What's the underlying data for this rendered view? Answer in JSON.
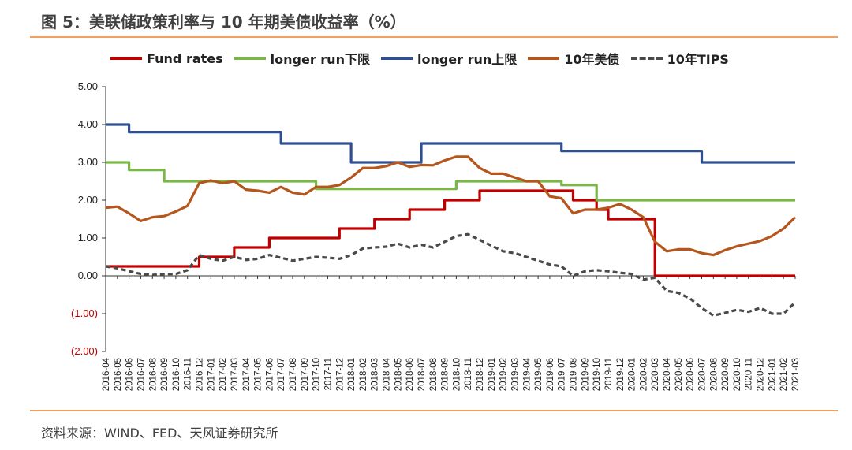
{
  "title": "图 5：美联储政策利率与 10 年期美债收益率（%）",
  "source": "资料来源：WIND、FED、天风证券研究所",
  "chart_data": {
    "type": "line",
    "ylim": [
      -2,
      5
    ],
    "yticks": [
      5,
      4,
      3,
      2,
      1,
      0,
      -1,
      -2
    ],
    "ytick_labels": [
      "5.00",
      "4.00",
      "3.00",
      "2.00",
      "1.00",
      "0.00",
      "(1.00)",
      "(2.00)"
    ],
    "negative_label_color": "#c00000",
    "legend_position": "top",
    "grid": false,
    "x_categories": [
      "2016-04",
      "2016-05",
      "2016-06",
      "2016-07",
      "2016-08",
      "2016-09",
      "2016-10",
      "2016-11",
      "2016-12",
      "2017-01",
      "2017-02",
      "2017-03",
      "2017-04",
      "2017-05",
      "2017-06",
      "2017-07",
      "2017-08",
      "2017-09",
      "2017-10",
      "2017-11",
      "2017-12",
      "2018-01",
      "2018-02",
      "2018-03",
      "2018-04",
      "2018-05",
      "2018-06",
      "2018-07",
      "2018-08",
      "2018-09",
      "2018-10",
      "2018-11",
      "2018-12",
      "2019-01",
      "2019-02",
      "2019-03",
      "2019-04",
      "2019-05",
      "2019-06",
      "2019-07",
      "2019-08",
      "2019-09",
      "2019-10",
      "2019-11",
      "2019-12",
      "2020-01",
      "2020-02",
      "2020-03",
      "2020-04",
      "2020-05",
      "2020-06",
      "2020-07",
      "2020-08",
      "2020-09",
      "2020-10",
      "2020-11",
      "2020-12",
      "2021-01",
      "2021-02",
      "2021-03"
    ],
    "series": [
      {
        "name": "Fund rates",
        "color": "#c00000",
        "style": "solid",
        "step": true,
        "values": [
          0.25,
          0.25,
          0.25,
          0.25,
          0.25,
          0.25,
          0.25,
          0.25,
          0.5,
          0.5,
          0.5,
          0.75,
          0.75,
          0.75,
          1.0,
          1.0,
          1.0,
          1.0,
          1.0,
          1.0,
          1.25,
          1.25,
          1.25,
          1.5,
          1.5,
          1.5,
          1.75,
          1.75,
          1.75,
          2.0,
          2.0,
          2.0,
          2.25,
          2.25,
          2.25,
          2.25,
          2.25,
          2.25,
          2.25,
          2.25,
          2.0,
          2.0,
          1.75,
          1.5,
          1.5,
          1.5,
          1.5,
          0.0,
          0.0,
          0.0,
          0.0,
          0.0,
          0.0,
          0.0,
          0.0,
          0.0,
          0.0,
          0.0,
          0.0,
          0.0
        ]
      },
      {
        "name": "longer run下限",
        "color": "#7ab648",
        "style": "solid",
        "step": true,
        "values": [
          3.0,
          3.0,
          2.8,
          2.8,
          2.8,
          2.5,
          2.5,
          2.5,
          2.5,
          2.5,
          2.5,
          2.5,
          2.5,
          2.5,
          2.5,
          2.5,
          2.5,
          2.5,
          2.3,
          2.3,
          2.3,
          2.3,
          2.3,
          2.3,
          2.3,
          2.3,
          2.3,
          2.3,
          2.3,
          2.3,
          2.5,
          2.5,
          2.5,
          2.5,
          2.5,
          2.5,
          2.5,
          2.5,
          2.5,
          2.4,
          2.4,
          2.4,
          2.0,
          2.0,
          2.0,
          2.0,
          2.0,
          2.0,
          2.0,
          2.0,
          2.0,
          2.0,
          2.0,
          2.0,
          2.0,
          2.0,
          2.0,
          2.0,
          2.0,
          2.0
        ]
      },
      {
        "name": "longer run上限",
        "color": "#2f4f8f",
        "style": "solid",
        "step": true,
        "values": [
          4.0,
          4.0,
          3.8,
          3.8,
          3.8,
          3.8,
          3.8,
          3.8,
          3.8,
          3.8,
          3.8,
          3.8,
          3.8,
          3.8,
          3.8,
          3.5,
          3.5,
          3.5,
          3.5,
          3.5,
          3.5,
          3.0,
          3.0,
          3.0,
          3.0,
          3.0,
          3.0,
          3.5,
          3.5,
          3.5,
          3.5,
          3.5,
          3.5,
          3.5,
          3.5,
          3.5,
          3.5,
          3.5,
          3.5,
          3.3,
          3.3,
          3.3,
          3.3,
          3.3,
          3.3,
          3.3,
          3.3,
          3.3,
          3.3,
          3.3,
          3.3,
          3.0,
          3.0,
          3.0,
          3.0,
          3.0,
          3.0,
          3.0,
          3.0,
          3.0
        ]
      },
      {
        "name": "10年美债",
        "color": "#b5561c",
        "style": "solid",
        "step": false,
        "values": [
          1.8,
          1.83,
          1.65,
          1.45,
          1.55,
          1.58,
          1.7,
          1.85,
          2.45,
          2.52,
          2.45,
          2.5,
          2.28,
          2.25,
          2.2,
          2.35,
          2.2,
          2.15,
          2.35,
          2.35,
          2.4,
          2.6,
          2.85,
          2.85,
          2.9,
          3.0,
          2.88,
          2.93,
          2.92,
          3.05,
          3.15,
          3.15,
          2.85,
          2.7,
          2.7,
          2.6,
          2.5,
          2.5,
          2.1,
          2.05,
          1.65,
          1.75,
          1.75,
          1.8,
          1.9,
          1.75,
          1.55,
          0.9,
          0.65,
          0.7,
          0.7,
          0.6,
          0.55,
          0.68,
          0.78,
          0.85,
          0.92,
          1.05,
          1.25,
          1.55
        ]
      },
      {
        "name": "10年TIPS",
        "color": "#4a4a4a",
        "style": "dashed",
        "step": false,
        "values": [
          0.25,
          0.2,
          0.12,
          0.05,
          0.02,
          0.05,
          0.05,
          0.15,
          0.55,
          0.45,
          0.4,
          0.5,
          0.42,
          0.45,
          0.55,
          0.48,
          0.4,
          0.45,
          0.5,
          0.48,
          0.45,
          0.55,
          0.72,
          0.75,
          0.77,
          0.85,
          0.75,
          0.82,
          0.75,
          0.9,
          1.05,
          1.1,
          0.95,
          0.8,
          0.65,
          0.6,
          0.5,
          0.4,
          0.3,
          0.25,
          0.0,
          0.12,
          0.15,
          0.12,
          0.08,
          0.05,
          -0.1,
          -0.05,
          -0.4,
          -0.45,
          -0.6,
          -0.85,
          -1.05,
          -0.98,
          -0.9,
          -0.95,
          -0.85,
          -1.0,
          -1.0,
          -0.7
        ]
      }
    ]
  }
}
